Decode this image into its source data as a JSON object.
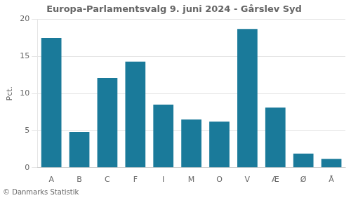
{
  "chart_data": {
    "type": "bar",
    "title": "Europa-Parlamentsvalg 9. juni 2024 - Gårslev Syd",
    "categories": [
      "A",
      "B",
      "C",
      "F",
      "I",
      "M",
      "O",
      "V",
      "Æ",
      "Ø",
      "Å"
    ],
    "values": [
      17.5,
      4.8,
      12.1,
      14.3,
      8.5,
      6.5,
      6.2,
      18.7,
      8.1,
      1.9,
      1.2
    ],
    "color": "#1a7a9a",
    "ylabel": "Pct.",
    "footer": "© Danmarks Statistik",
    "ylim": [
      0,
      20
    ],
    "yticks": [
      0,
      5,
      10,
      15,
      20
    ],
    "grid": true
  }
}
